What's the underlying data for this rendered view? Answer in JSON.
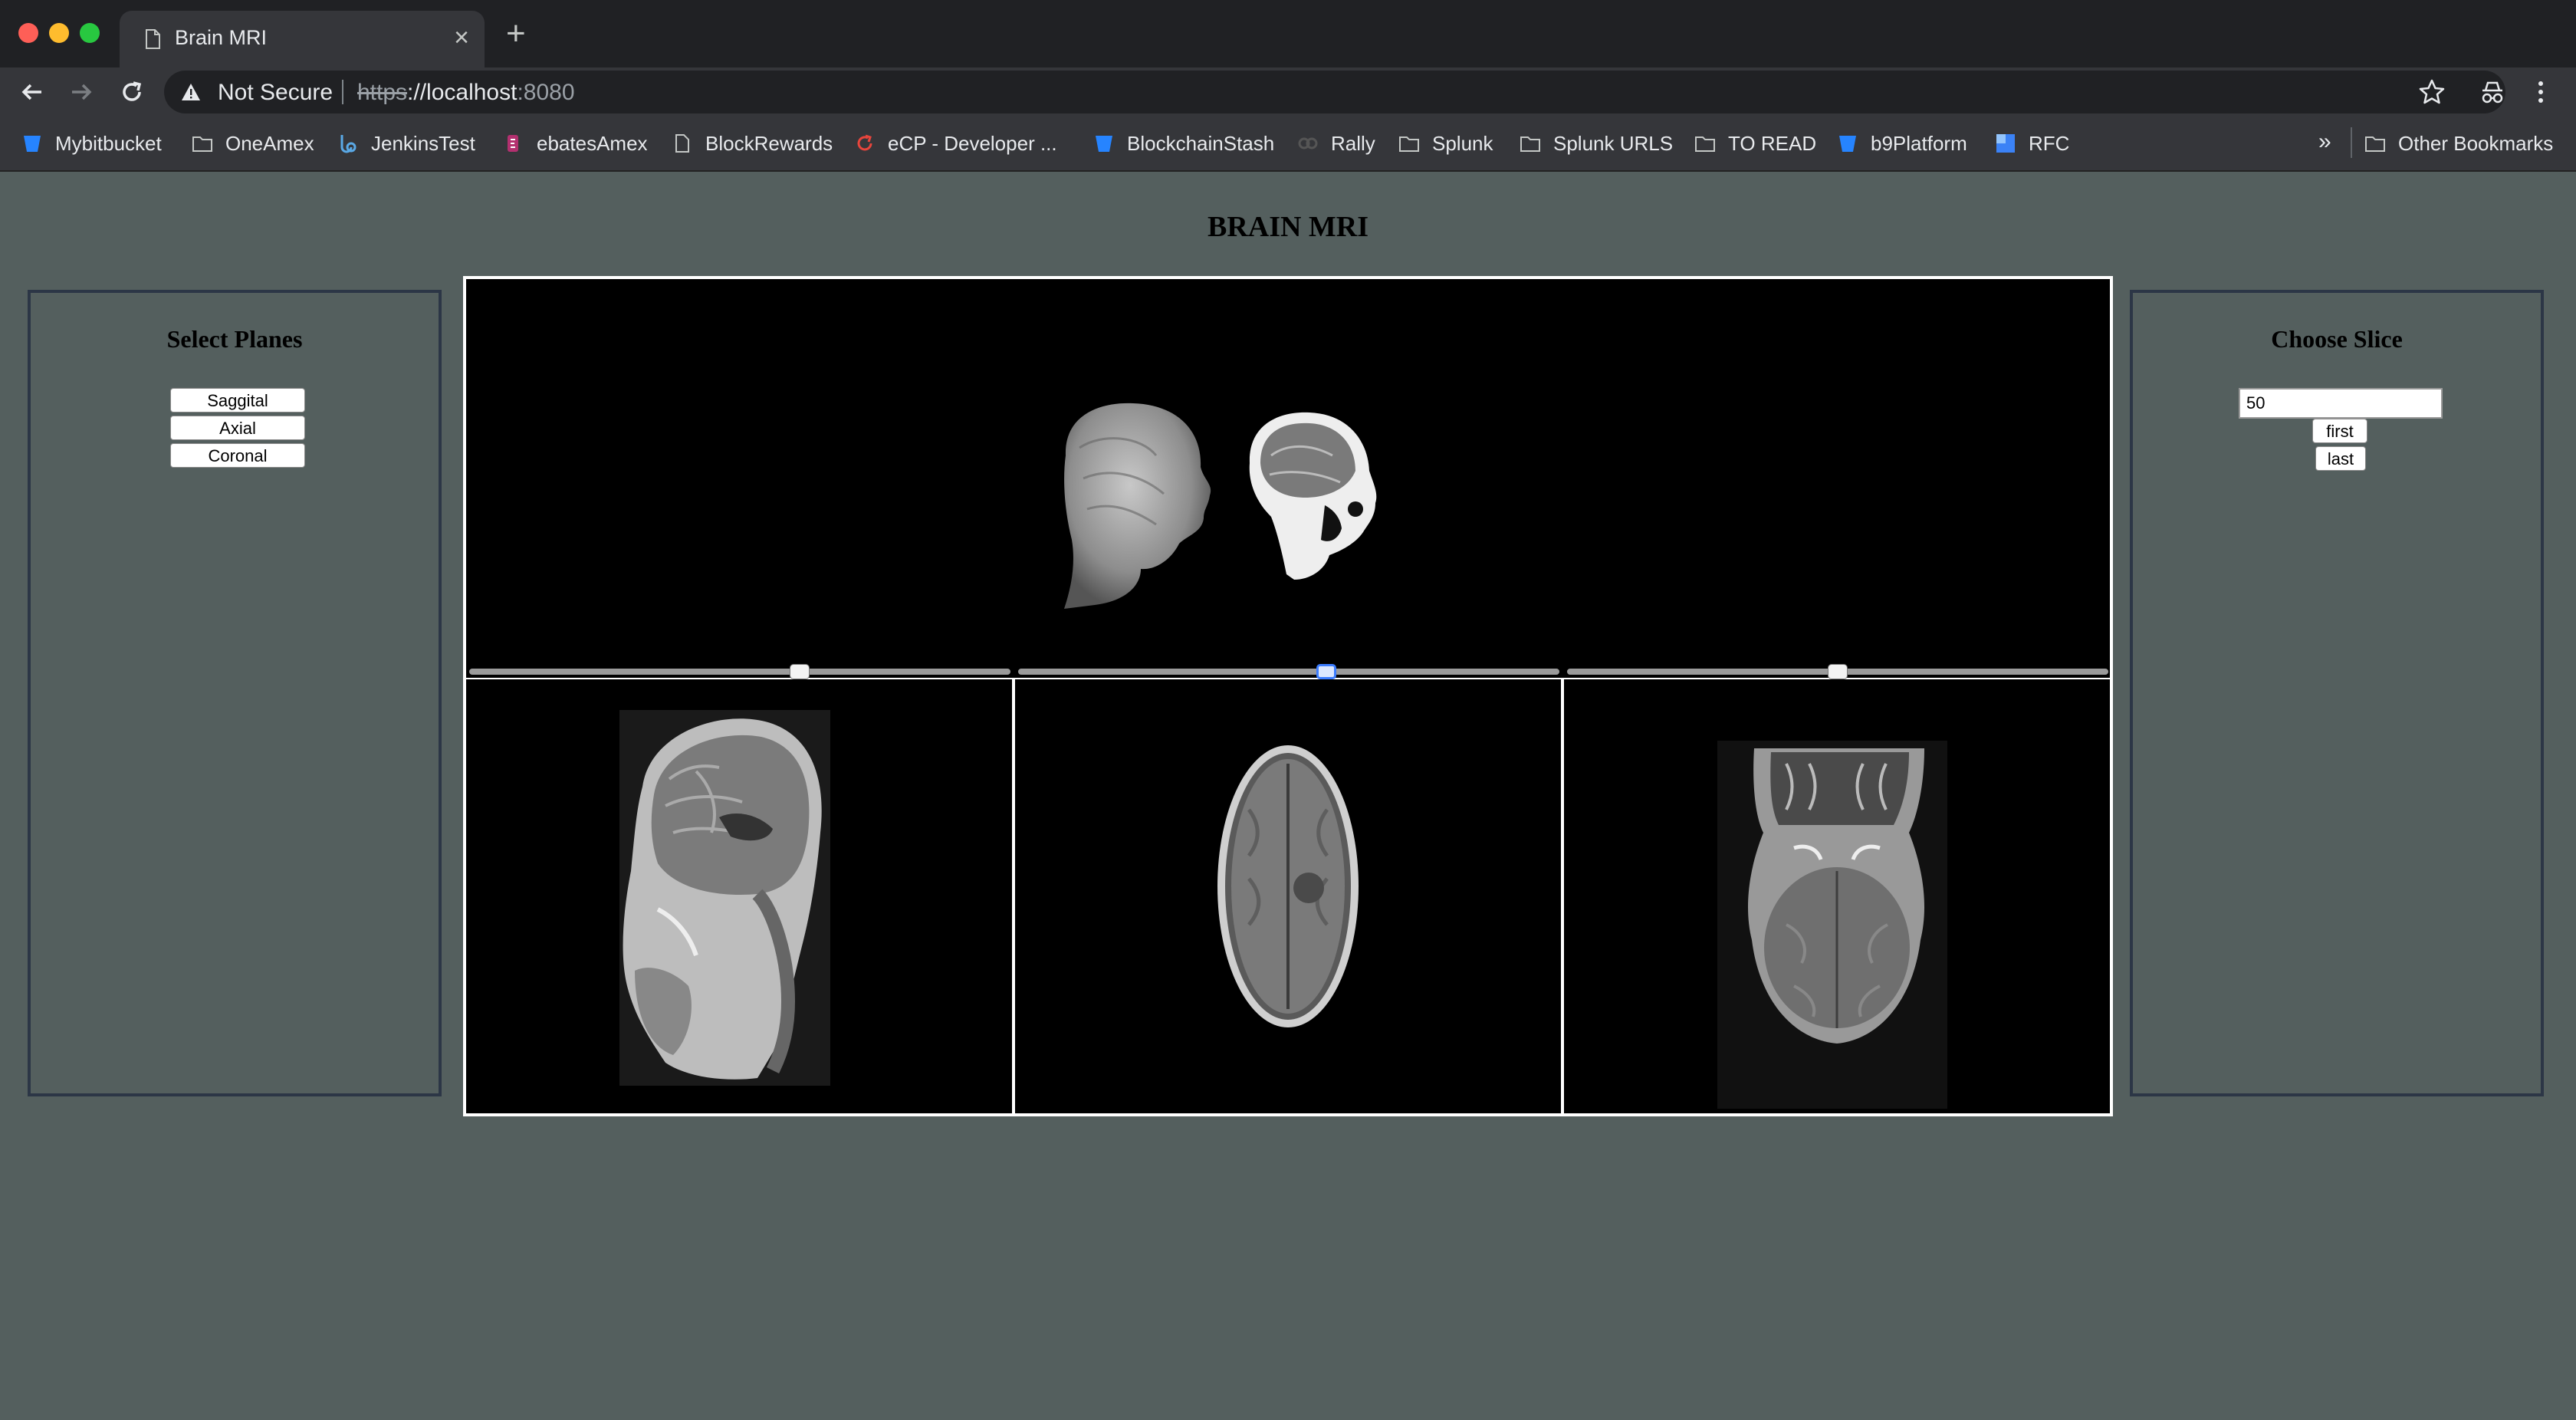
{
  "browser": {
    "tab_title": "Brain MRI",
    "tab_close": "×",
    "new_tab": "+",
    "security_label": "Not Secure",
    "url_scheme": "https",
    "url_host": "://localhost",
    "url_port": ":8080",
    "bookmarks": [
      {
        "label": "Mybitbucket",
        "icon": "bitbucket-icon"
      },
      {
        "label": "OneAmex",
        "icon": "folder-icon"
      },
      {
        "label": "JenkinsTest",
        "icon": "link-icon"
      },
      {
        "label": "ebatesAmex",
        "icon": "ebates-icon"
      },
      {
        "label": "BlockRewards",
        "icon": "page-icon"
      },
      {
        "label": "eCP - Developer ...",
        "icon": "sync-icon"
      },
      {
        "label": "BlockchainStash",
        "icon": "bitbucket-icon"
      },
      {
        "label": "Rally",
        "icon": "rally-icon"
      },
      {
        "label": "Splunk",
        "icon": "folder-icon"
      },
      {
        "label": "Splunk URLS",
        "icon": "folder-icon"
      },
      {
        "label": "TO READ",
        "icon": "folder-icon"
      },
      {
        "label": "b9Platform",
        "icon": "bitbucket-icon"
      },
      {
        "label": "RFC",
        "icon": "square-icon"
      }
    ],
    "more_bookmarks": "»",
    "other_bookmarks": "Other Bookmarks"
  },
  "page": {
    "title": "BRAIN MRI"
  },
  "planes_panel": {
    "title": "Select Planes",
    "buttons": [
      "Saggital",
      "Axial",
      "Coronal"
    ]
  },
  "slice_panel": {
    "title": "Choose Slice",
    "input_value": "50",
    "first_label": "first",
    "last_label": "last"
  },
  "viewer": {
    "sliders": [
      {
        "plane": "sagittal",
        "position": 0.61
      },
      {
        "plane": "axial",
        "position": 0.57
      },
      {
        "plane": "coronal",
        "position": 0.5
      }
    ],
    "active_slider": 1
  },
  "colors": {
    "page_background": "#545f5e",
    "panel_border": "#2c3646",
    "viewer_background": "#000000"
  }
}
